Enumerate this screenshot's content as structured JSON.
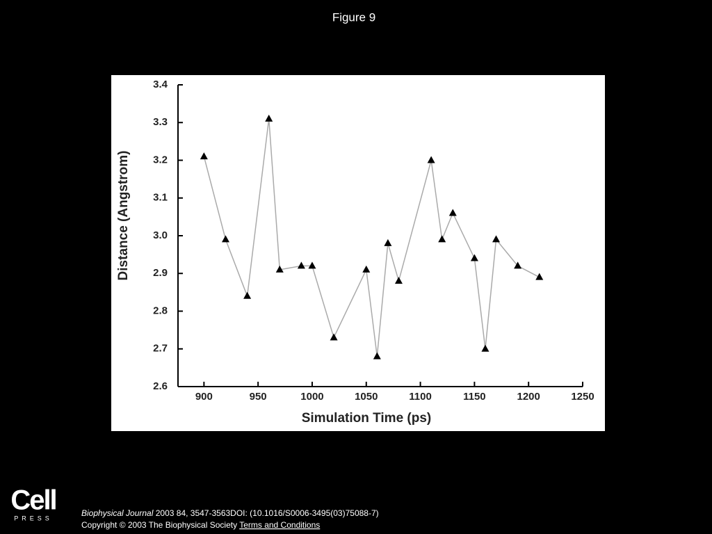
{
  "header": {
    "title": "Figure 9"
  },
  "chart_data": {
    "type": "line",
    "x": [
      900,
      920,
      940,
      960,
      970,
      990,
      1000,
      1020,
      1050,
      1060,
      1070,
      1080,
      1110,
      1120,
      1130,
      1150,
      1160,
      1170,
      1190,
      1210
    ],
    "values": [
      3.21,
      2.99,
      2.84,
      3.31,
      2.91,
      2.92,
      2.92,
      2.73,
      2.91,
      2.68,
      2.98,
      2.88,
      3.2,
      2.99,
      3.06,
      2.94,
      2.7,
      2.99,
      2.92,
      2.89
    ],
    "color": "#aaaaaa",
    "marker_color": "#000000",
    "xlabel": "Simulation Time (ps)",
    "ylabel": "Distance (Angstrom)",
    "xlim": [
      876,
      1250
    ],
    "xticks": [
      900,
      950,
      1000,
      1050,
      1100,
      1150,
      1200,
      1250
    ],
    "ylim": [
      2.6,
      3.4
    ],
    "yticks": [
      2.6,
      2.7,
      2.8,
      2.9,
      {
        "value": 3,
        "label": "3.0"
      },
      3.1,
      3.2,
      3.3,
      3.4
    ]
  },
  "footer": {
    "logo": "Cell",
    "logo_sub": "PRESS",
    "journal": "Biophysical Journal",
    "citation": "2003 84, 3547-3563DOI: (10.1016/S0006-3495(03)75088-7)",
    "copyright": "Copyright © 2003 The Biophysical Society",
    "link": "Terms and Conditions"
  }
}
